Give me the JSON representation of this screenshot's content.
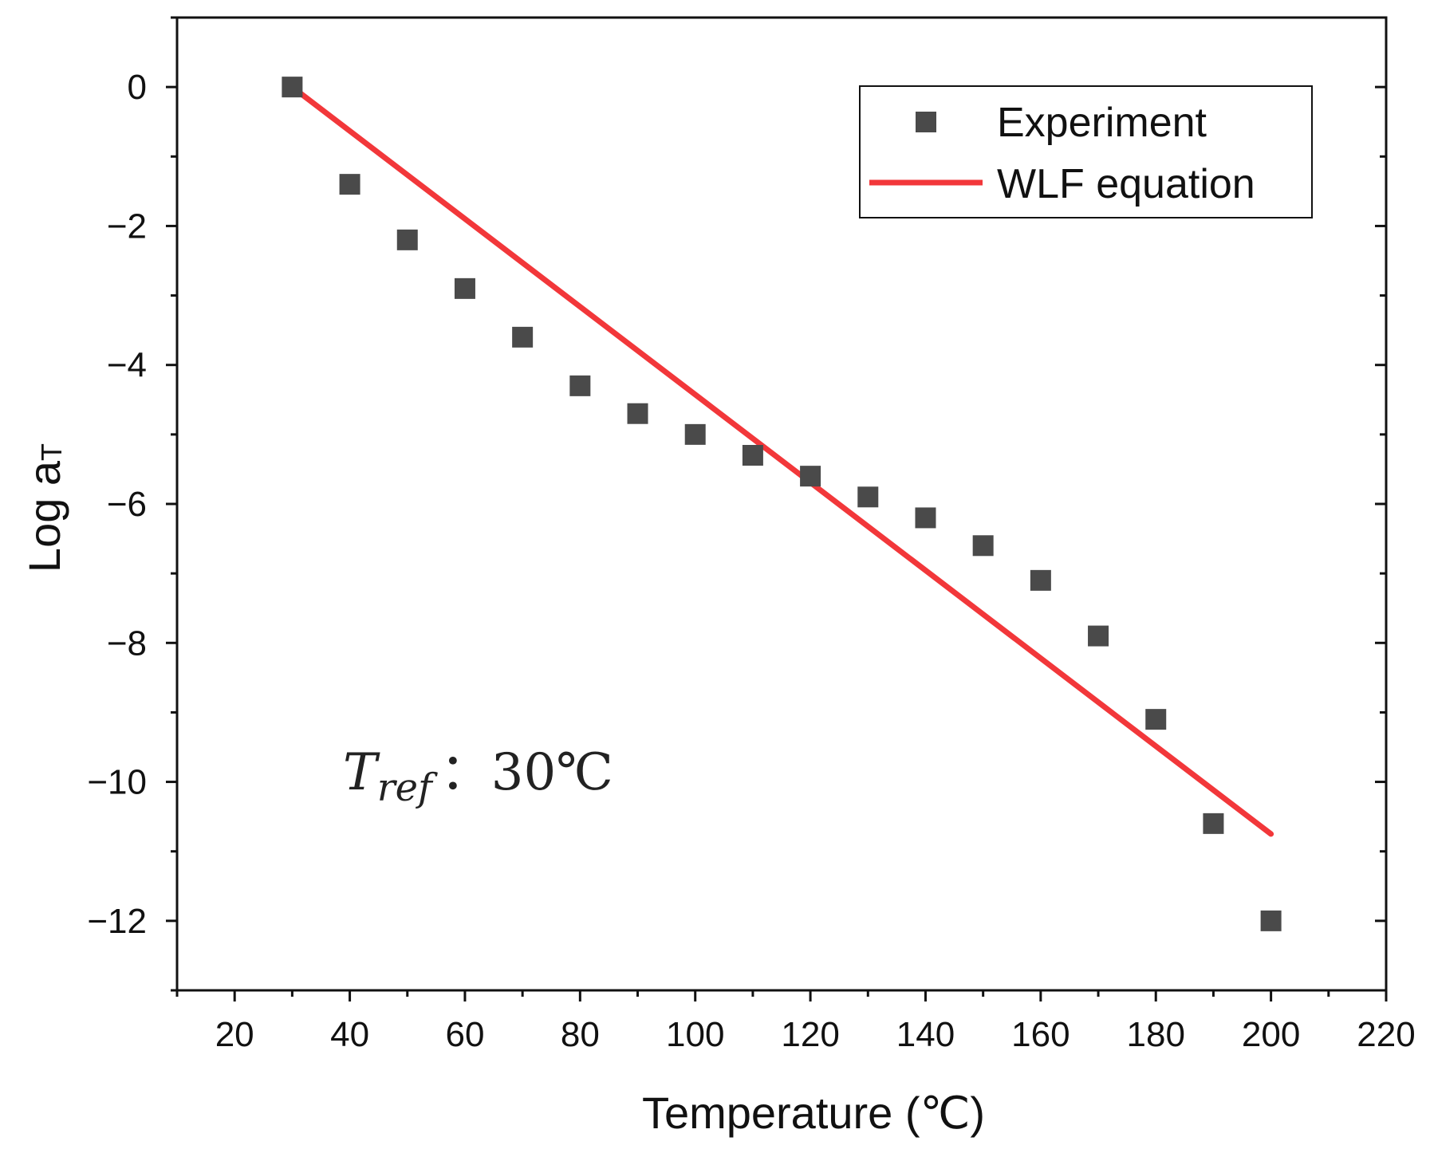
{
  "chart_data": {
    "type": "scatter",
    "title": "",
    "xlabel": "Temperature (℃)",
    "ylabel_main": "Log a",
    "ylabel_sub": "T",
    "xlim": [
      10,
      220
    ],
    "ylim": [
      -13,
      1
    ],
    "x_ticks": [
      20,
      40,
      60,
      80,
      100,
      120,
      140,
      160,
      180,
      200,
      220
    ],
    "y_ticks": [
      0,
      -2,
      -4,
      -6,
      -8,
      -10,
      -12
    ],
    "x_tick_labels": [
      "20",
      "40",
      "60",
      "80",
      "100",
      "120",
      "140",
      "160",
      "180",
      "200",
      "220"
    ],
    "y_tick_labels": [
      "0",
      "−2",
      "−4",
      "−6",
      "−8",
      "−10",
      "−12"
    ],
    "grid": false,
    "legend_position": "top-right",
    "series": [
      {
        "name": "Experiment",
        "kind": "scatter",
        "marker": "square",
        "color": "#4a4a4a",
        "x": [
          30,
          40,
          50,
          60,
          70,
          80,
          90,
          100,
          110,
          120,
          130,
          140,
          150,
          160,
          170,
          180,
          190,
          200
        ],
        "y": [
          0,
          -1.4,
          -2.2,
          -2.9,
          -3.6,
          -4.3,
          -4.7,
          -5.0,
          -5.3,
          -5.6,
          -5.9,
          -6.2,
          -6.6,
          -7.1,
          -7.9,
          -9.1,
          -10.6,
          -12.0
        ]
      },
      {
        "name": "WLF equation",
        "kind": "line",
        "color": "#f2373a",
        "x": [
          30,
          200
        ],
        "y": [
          0,
          -10.75
        ]
      }
    ],
    "annotation": {
      "main": "T",
      "sub": "ref",
      "rest": "：30℃"
    }
  }
}
